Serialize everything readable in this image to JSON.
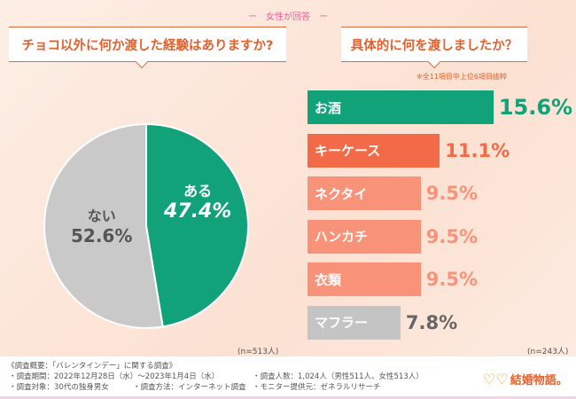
{
  "header": {
    "respondent": "ー　女性が回答　ー"
  },
  "left": {
    "question": "チョコ以外に何か渡した経験はありますか?",
    "n": "(n=513人)"
  },
  "right": {
    "question": "具体的に何を渡しましたか？",
    "note": "※全11項目中上位6項目抜粋",
    "n": "(n=243人)"
  },
  "chart_data": [
    {
      "type": "pie",
      "slices": [
        {
          "label": "ある",
          "value": 47.4,
          "display": "47.4%",
          "color": "#12a27a"
        },
        {
          "label": "ない",
          "value": 52.6,
          "display": "52.6%",
          "color": "#c9c9c9"
        }
      ]
    },
    {
      "type": "bar",
      "orientation": "horizontal",
      "categories": [
        "お酒",
        "キーケース",
        "ネクタイ",
        "ハンカチ",
        "衣類",
        "マフラー"
      ],
      "values": [
        15.6,
        11.1,
        9.5,
        9.5,
        9.5,
        7.8
      ],
      "display": [
        "15.6%",
        "11.1%",
        "9.5%",
        "9.5%",
        "9.5%",
        "7.8%"
      ],
      "colors": [
        "#12a27a",
        "#f26a47",
        "#f8937a",
        "#f8937a",
        "#f8937a",
        "#c4c4c4"
      ]
    }
  ],
  "footer": {
    "title": "《調査概要：「バレンタインデー」に関する調査》",
    "period": "・調査期間：2022年12月28日（水）～2023年1月4日（水）",
    "count": "・調査人数：1,024人（男性511人、女性513人）",
    "target": "・調査対象：30代の独身男女",
    "method": "・調査方法：インターネット調査",
    "provider": "・モニター提供元：ゼネラルリサーチ",
    "logo": "結婚物語。"
  }
}
